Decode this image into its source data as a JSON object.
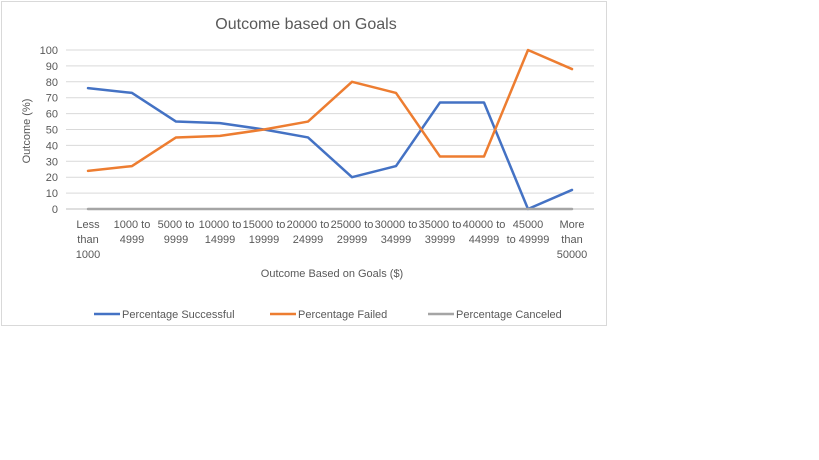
{
  "chart_data": {
    "type": "line",
    "title": "Outcome based on Goals",
    "xlabel": "Outcome Based on Goals ($)",
    "ylabel": "Outcome (%)",
    "ylim": [
      0,
      100
    ],
    "yticks": [
      0,
      10,
      20,
      30,
      40,
      50,
      60,
      70,
      80,
      90,
      100
    ],
    "grid": true,
    "legend_position": "bottom",
    "categories": [
      [
        "Less",
        "than",
        "1000"
      ],
      [
        "1000 to",
        "4999"
      ],
      [
        "5000 to",
        "9999"
      ],
      [
        "10000 to",
        "14999"
      ],
      [
        "15000 to",
        "19999"
      ],
      [
        "20000 to",
        "24999"
      ],
      [
        "25000 to",
        "29999"
      ],
      [
        "30000 to",
        "34999"
      ],
      [
        "35000 to",
        "39999"
      ],
      [
        "40000 to",
        "44999"
      ],
      [
        "45000",
        "to 49999"
      ],
      [
        "More",
        "than",
        "50000"
      ]
    ],
    "series": [
      {
        "name": "Percentage Successful",
        "color": "#4472c4",
        "values": [
          76,
          73,
          55,
          54,
          50,
          45,
          20,
          27,
          67,
          67,
          0,
          12
        ]
      },
      {
        "name": "Percentage Failed",
        "color": "#ed7d31",
        "values": [
          24,
          27,
          45,
          46,
          50,
          55,
          80,
          73,
          33,
          33,
          100,
          88
        ]
      },
      {
        "name": "Percentage Canceled",
        "color": "#a5a5a5",
        "values": [
          0,
          0,
          0,
          0,
          0,
          0,
          0,
          0,
          0,
          0,
          0,
          0
        ]
      }
    ]
  }
}
